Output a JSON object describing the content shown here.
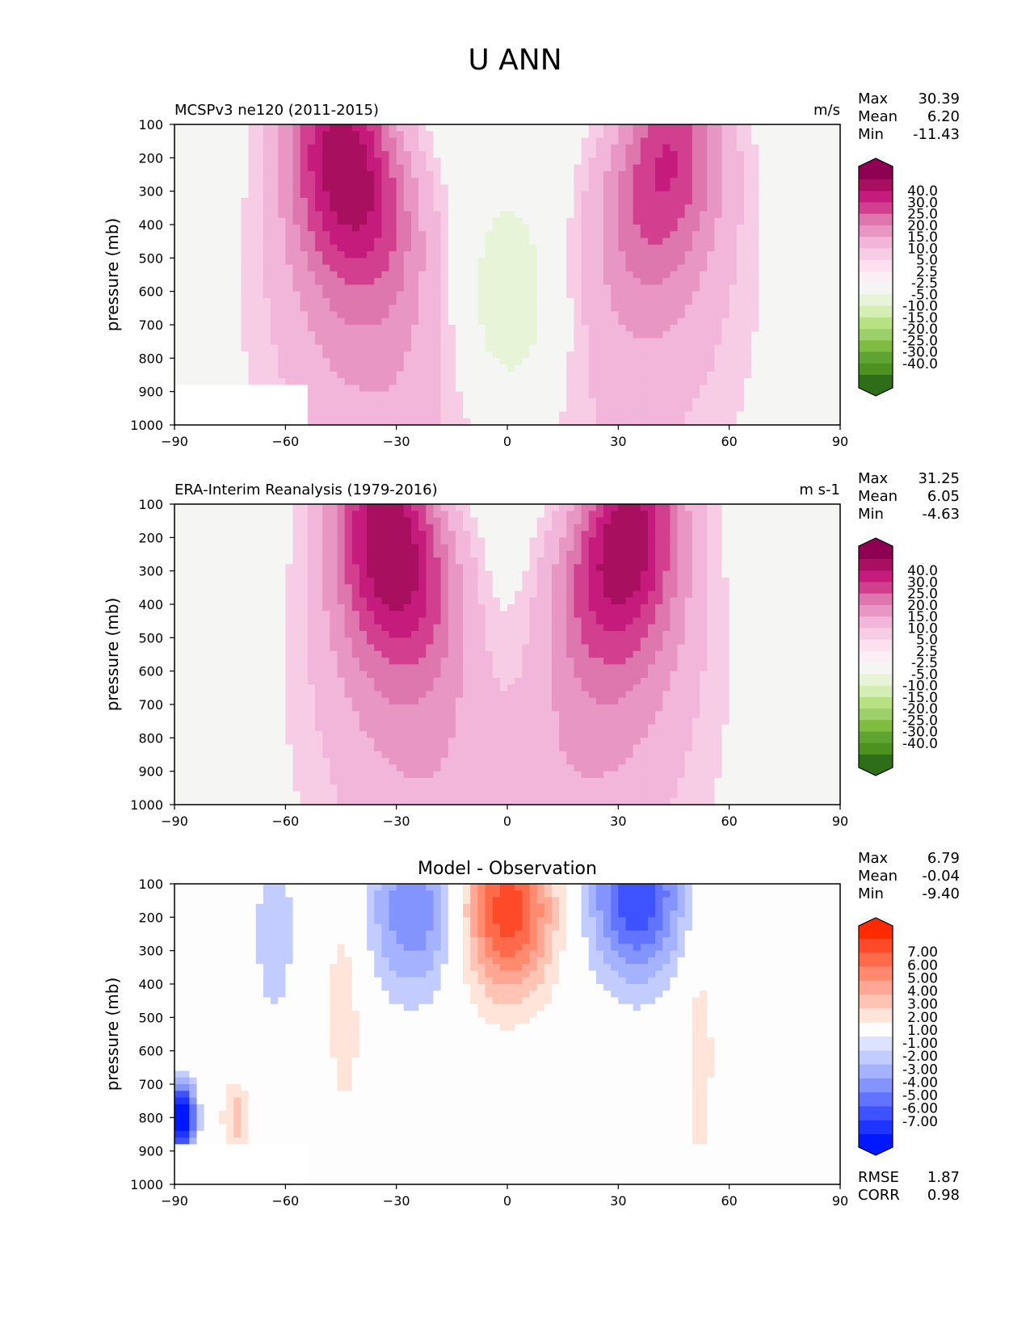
{
  "figure": {
    "title": "U ANN"
  },
  "chart_data": [
    {
      "type": "heatmap",
      "subtype": "filled-contour",
      "title": "MCSPv3 ne120 (2011-2015)",
      "units": "m/s",
      "ylabel": "pressure (mb)",
      "xlabel": "",
      "xlim": [
        -90,
        90
      ],
      "ylim": [
        1000,
        100
      ],
      "y_inverted": true,
      "xticks": [
        "−90",
        "−60",
        "−30",
        "0",
        "30",
        "60",
        "90"
      ],
      "yticks": [
        "100",
        "200",
        "300",
        "400",
        "500",
        "600",
        "700",
        "800",
        "900",
        "1000"
      ],
      "stats": {
        "labels": [
          "Max",
          "Mean",
          "Min"
        ],
        "values": [
          "30.39",
          "6.20",
          "-11.43"
        ]
      },
      "colorbar": {
        "levels": [
          "40.0",
          "30.0",
          "25.0",
          "20.0",
          "15.0",
          "10.0",
          "5.0",
          "2.5",
          "-2.5",
          "-5.0",
          "-10.0",
          "-15.0",
          "-20.0",
          "-25.0",
          "-30.0",
          "-40.0"
        ],
        "colors": [
          "#8e0152",
          "#a8105f",
          "#c51b7d",
          "#d33f8f",
          "#de77ae",
          "#e897c4",
          "#f1b6da",
          "#f6cde5",
          "#fde0ef",
          "#fbeef4",
          "#f5f5f4",
          "#e8f4d8",
          "#d5eeb4",
          "#b8e186",
          "#9dcf6a",
          "#7fbc41",
          "#5fa432",
          "#4d9221",
          "#2f6e18"
        ],
        "extend": "both"
      },
      "features": [
        {
          "kind": "jet",
          "lat": -44,
          "p": 200,
          "peak": 30.39
        },
        {
          "kind": "jet",
          "lat": 43,
          "p": 200,
          "peak": 22
        },
        {
          "kind": "easterly",
          "lat": 0,
          "p": 700,
          "peak": -7
        }
      ]
    },
    {
      "type": "heatmap",
      "subtype": "filled-contour",
      "title": "ERA-Interim Reanalysis (1979-2016)",
      "units": "m s-1",
      "ylabel": "pressure (mb)",
      "xlabel": "",
      "xlim": [
        -90,
        90
      ],
      "ylim": [
        1000,
        100
      ],
      "y_inverted": true,
      "xticks": [
        "−90",
        "−60",
        "−30",
        "0",
        "30",
        "60",
        "90"
      ],
      "yticks": [
        "100",
        "200",
        "300",
        "400",
        "500",
        "600",
        "700",
        "800",
        "900",
        "1000"
      ],
      "stats": {
        "labels": [
          "Max",
          "Mean",
          "Min"
        ],
        "values": [
          "31.25",
          "6.05",
          "-4.63"
        ]
      },
      "colorbar": {
        "levels": [
          "40.0",
          "30.0",
          "25.0",
          "20.0",
          "15.0",
          "10.0",
          "5.0",
          "2.5",
          "-2.5",
          "-5.0",
          "-10.0",
          "-15.0",
          "-20.0",
          "-25.0",
          "-30.0",
          "-40.0"
        ],
        "colors": [
          "#8e0152",
          "#a8105f",
          "#c51b7d",
          "#d33f8f",
          "#de77ae",
          "#e897c4",
          "#f1b6da",
          "#f6cde5",
          "#fde0ef",
          "#fbeef4",
          "#f5f5f4",
          "#e8f4d8",
          "#d5eeb4",
          "#b8e186",
          "#9dcf6a",
          "#7fbc41",
          "#5fa432",
          "#4d9221",
          "#2f6e18"
        ],
        "extend": "both"
      },
      "features": [
        {
          "kind": "jet",
          "lat": -32,
          "p": 200,
          "peak": 31.25
        },
        {
          "kind": "jet",
          "lat": 32,
          "p": 200,
          "peak": 30
        },
        {
          "kind": "easterly",
          "lat": -2,
          "p": 650,
          "peak": -4.63
        }
      ]
    },
    {
      "type": "heatmap",
      "subtype": "filled-contour",
      "title": "Model - Observation",
      "units": "",
      "ylabel": "pressure (mb)",
      "xlabel": "",
      "xlim": [
        -90,
        90
      ],
      "ylim": [
        1000,
        100
      ],
      "y_inverted": true,
      "xticks": [
        "−90",
        "−60",
        "−30",
        "0",
        "30",
        "60",
        "90"
      ],
      "yticks": [
        "100",
        "200",
        "300",
        "400",
        "500",
        "600",
        "700",
        "800",
        "900",
        "1000"
      ],
      "stats": {
        "labels": [
          "Max",
          "Mean",
          "Min"
        ],
        "values": [
          "6.79",
          "-0.04",
          "-9.40"
        ]
      },
      "metrics": {
        "labels": [
          "RMSE",
          "CORR"
        ],
        "values": [
          "1.87",
          "0.98"
        ]
      },
      "colorbar": {
        "levels": [
          "7.00",
          "6.00",
          "5.00",
          "4.00",
          "3.00",
          "2.00",
          "1.00",
          "-1.00",
          "-2.00",
          "-3.00",
          "-4.00",
          "-5.00",
          "-6.00",
          "-7.00"
        ],
        "colors": [
          "#ff2a00",
          "#ff4a2a",
          "#ff6a4a",
          "#ff8a6e",
          "#ffa794",
          "#ffc4b4",
          "#ffe4da",
          "#fdfdfd",
          "#dde3ff",
          "#c3ccff",
          "#a4b2ff",
          "#8494ff",
          "#6274ff",
          "#3f52ff",
          "#1f34ff",
          "#0018ff"
        ],
        "extend": "both"
      },
      "features": [
        {
          "kind": "positive",
          "lat": 0,
          "p": 180,
          "peak": 6.79
        },
        {
          "kind": "negative",
          "lat": 35,
          "p": 130,
          "peak": -6
        },
        {
          "kind": "negative",
          "lat": -25,
          "p": 180,
          "peak": -4
        },
        {
          "kind": "negative",
          "lat": -88,
          "p": 800,
          "peak": -9.4
        }
      ]
    }
  ]
}
